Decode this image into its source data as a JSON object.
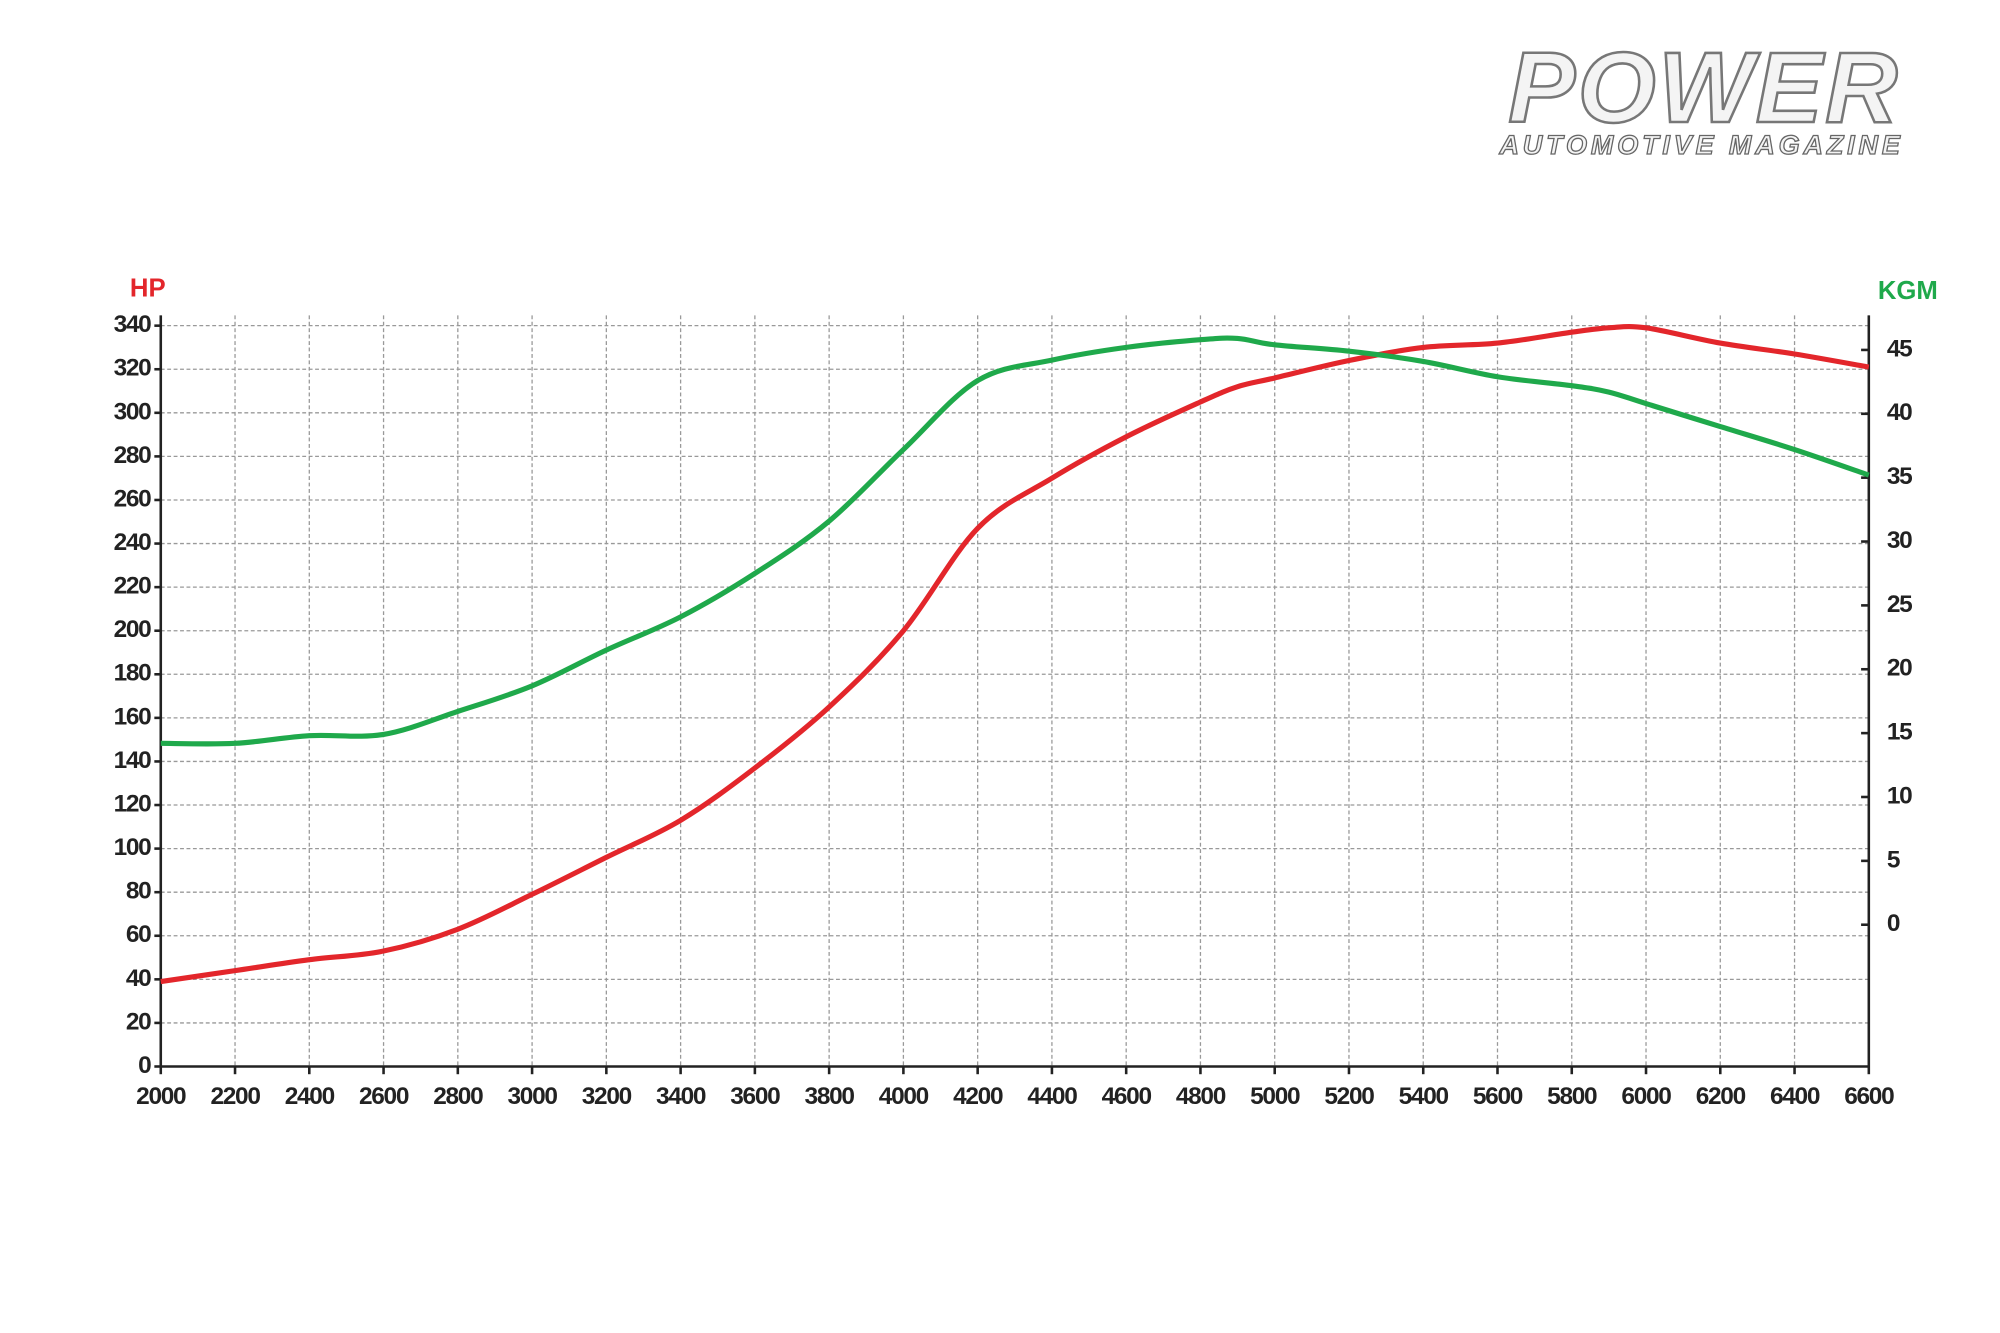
{
  "logo": {
    "title": "POWER",
    "subtitle": "AUTOMOTIVE MAGAZINE"
  },
  "chart_data": {
    "type": "line",
    "y_label": "HP",
    "y2_label": "KGM",
    "x": [
      2000,
      2200,
      2400,
      2600,
      2800,
      3000,
      3200,
      3400,
      3600,
      3800,
      4000,
      4200,
      4400,
      4600,
      4800,
      4900,
      5000,
      5200,
      5400,
      5600,
      5800,
      5900,
      6000,
      6200,
      6400,
      6600
    ],
    "series": [
      {
        "color": "#e3262b",
        "values": [
          39,
          44,
          49,
          53,
          63,
          79,
          96,
          113,
          137,
          165,
          200,
          247,
          270,
          289,
          305,
          312,
          316,
          324,
          330,
          332,
          337,
          339,
          339,
          332,
          327,
          321
        ]
      },
      {
        "color": "#1fa94b",
        "axis": "y2",
        "values": [
          14.2,
          14.2,
          14.8,
          14.9,
          16.7,
          18.7,
          21.5,
          24.1,
          27.5,
          31.6,
          37.2,
          42.6,
          44.2,
          45.2,
          45.8,
          45.9,
          45.4,
          44.9,
          44.1,
          42.9,
          42.2,
          41.7,
          40.8,
          39.0,
          37.2,
          35.2
        ]
      }
    ],
    "xlim": [
      2000,
      6600
    ],
    "xticks": [
      2000,
      2200,
      2400,
      2600,
      2800,
      3000,
      3200,
      3400,
      3600,
      3800,
      4000,
      4200,
      4400,
      4600,
      4800,
      5000,
      5200,
      5400,
      5600,
      5800,
      6000,
      6200,
      6400,
      6600
    ],
    "ylim": [
      0,
      340
    ],
    "yticks": [
      0,
      20,
      40,
      60,
      80,
      100,
      120,
      140,
      160,
      180,
      200,
      220,
      240,
      260,
      280,
      300,
      320,
      340
    ],
    "y2lim": [
      -11.1,
      46.9
    ],
    "y2ticks": [
      0,
      5,
      10,
      15,
      20,
      25,
      30,
      35,
      40,
      45
    ],
    "grid": true
  }
}
